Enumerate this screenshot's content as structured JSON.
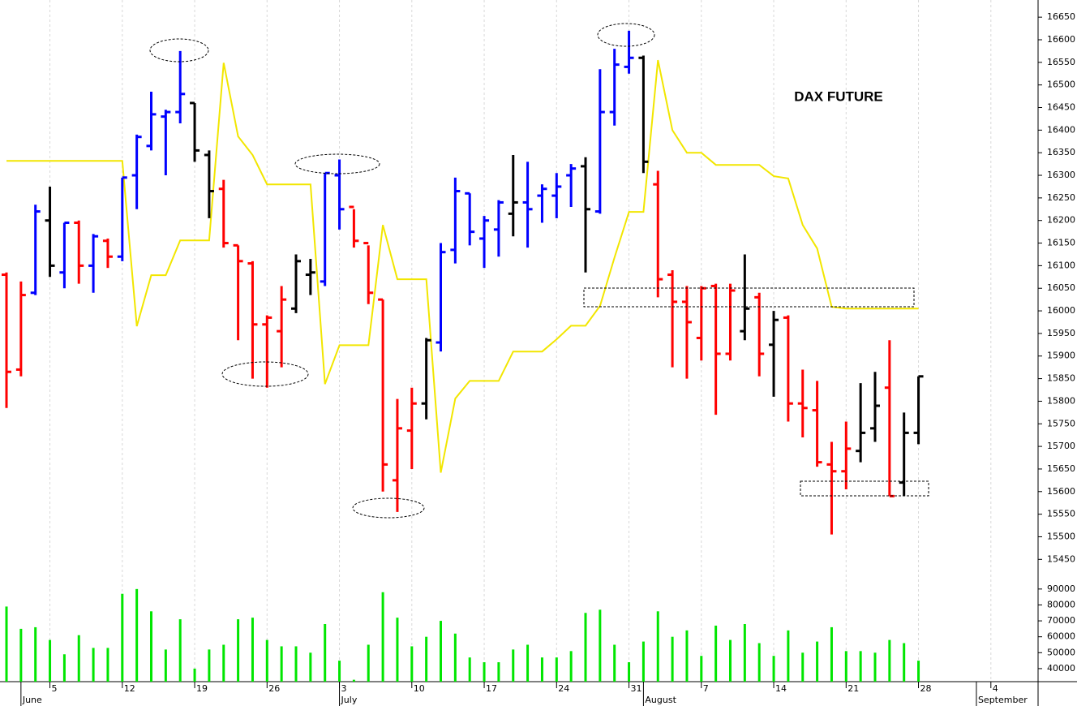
{
  "chart_data": {
    "type": "ohlc",
    "title": "DAX FUTURE",
    "categories": [
      null,
      null,
      null,
      "5",
      null,
      null,
      null,
      null,
      "12",
      null,
      null,
      null,
      null,
      "19",
      null,
      null,
      null,
      null,
      "26",
      null,
      null,
      null,
      null,
      "3",
      null,
      null,
      null,
      null,
      "10",
      null,
      null,
      null,
      null,
      "17",
      null,
      null,
      null,
      null,
      "24",
      null,
      null,
      null,
      null,
      "31",
      null,
      null,
      null,
      null,
      "7",
      null,
      null,
      null,
      null,
      "14",
      null,
      null,
      null,
      null,
      "21",
      null,
      null,
      null,
      null,
      "28",
      null,
      null,
      null,
      null,
      "4"
    ],
    "month_ticks": [
      {
        "value": 1,
        "label": "June"
      },
      {
        "value": 23,
        "label": "July"
      },
      {
        "value": 44,
        "label": "August"
      },
      {
        "value": 67,
        "label": "September"
      }
    ],
    "ohlc": {
      "open": [
        16080,
        15870,
        16040,
        16200,
        16085,
        16195,
        16100,
        16155,
        16120,
        16300,
        16365,
        16430,
        16440,
        16460,
        16345,
        16270,
        16145,
        16105,
        15970,
        15955,
        16005,
        16080,
        16065,
        16300,
        16230,
        16150,
        16025,
        15625,
        15735,
        15795,
        15930,
        16135,
        16260,
        16160,
        16180,
        16215,
        16240,
        16255,
        16255,
        16300,
        16320,
        16220,
        16440,
        16540,
        16560,
        16280,
        16080,
        16020,
        15940,
        16055,
        15905,
        15955,
        16030,
        15925,
        15985,
        15795,
        15780,
        15660,
        15645,
        15690,
        15740,
        15830,
        15620,
        15730,
        null,
        null,
        null,
        null,
        null
      ],
      "high": [
        16085,
        16065,
        16235,
        16275,
        16195,
        16200,
        16170,
        16160,
        16295,
        16390,
        16485,
        16445,
        16575,
        16460,
        16355,
        16290,
        16145,
        16110,
        15990,
        16055,
        16125,
        16115,
        16305,
        16335,
        16225,
        16145,
        16025,
        15805,
        15830,
        15940,
        16150,
        16295,
        16260,
        16210,
        16245,
        16345,
        16330,
        16280,
        16305,
        16325,
        16340,
        16535,
        16580,
        16620,
        16565,
        16310,
        16090,
        16055,
        16055,
        16060,
        16060,
        16125,
        16040,
        16000,
        15990,
        15870,
        15845,
        15710,
        15755,
        15840,
        15865,
        15935,
        15775,
        15855,
        null,
        null,
        null,
        null,
        null
      ],
      "low": [
        15785,
        15855,
        16035,
        16075,
        16050,
        16060,
        16040,
        16095,
        16110,
        16225,
        16355,
        16300,
        16415,
        16330,
        16205,
        16140,
        15935,
        15850,
        15830,
        15875,
        15995,
        16035,
        16055,
        16180,
        16140,
        16015,
        15600,
        15555,
        15650,
        15760,
        15910,
        16105,
        16145,
        16095,
        16120,
        16165,
        16140,
        16195,
        16205,
        16230,
        16085,
        16215,
        16410,
        16525,
        16305,
        16030,
        15875,
        15850,
        15890,
        15770,
        15890,
        15935,
        15855,
        15810,
        15755,
        15720,
        15655,
        15505,
        15605,
        15665,
        15710,
        15590,
        15590,
        15705,
        null,
        null,
        null,
        null,
        null
      ],
      "close": [
        15865,
        16035,
        16220,
        16100,
        16195,
        16100,
        16165,
        16120,
        16295,
        16385,
        16435,
        16440,
        16480,
        16355,
        16265,
        16150,
        16110,
        15970,
        15985,
        16025,
        16110,
        16085,
        16305,
        16225,
        16155,
        16040,
        15660,
        15740,
        15795,
        15935,
        16130,
        16265,
        16175,
        16200,
        16240,
        16240,
        16225,
        16270,
        16275,
        16315,
        16225,
        16440,
        16545,
        16560,
        16330,
        16070,
        16020,
        15975,
        16050,
        15905,
        16045,
        16005,
        15905,
        15980,
        15795,
        15785,
        15665,
        15645,
        15695,
        15730,
        15790,
        15590,
        15730,
        15855,
        null,
        null,
        null,
        null,
        null
      ],
      "colors": [
        "#ff0000",
        "#ff0000",
        "#0000ff",
        "#000000",
        "#0000ff",
        "#ff0000",
        "#0000ff",
        "#ff0000",
        "#0000ff",
        "#0000ff",
        "#0000ff",
        "#0000ff",
        "#0000ff",
        "#000000",
        "#000000",
        "#ff0000",
        "#ff0000",
        "#ff0000",
        "#ff0000",
        "#ff0000",
        "#000000",
        "#000000",
        "#0000ff",
        "#0000ff",
        "#ff0000",
        "#ff0000",
        "#ff0000",
        "#ff0000",
        "#ff0000",
        "#000000",
        "#0000ff",
        "#0000ff",
        "#0000ff",
        "#0000ff",
        "#0000ff",
        "#000000",
        "#0000ff",
        "#0000ff",
        "#0000ff",
        "#0000ff",
        "#000000",
        "#0000ff",
        "#0000ff",
        "#0000ff",
        "#000000",
        "#ff0000",
        "#ff0000",
        "#ff0000",
        "#ff0000",
        "#ff0000",
        "#ff0000",
        "#000000",
        "#ff0000",
        "#000000",
        "#ff0000",
        "#ff0000",
        "#ff0000",
        "#ff0000",
        "#ff0000",
        "#000000",
        "#000000",
        "#ff0000",
        "#000000",
        "#000000",
        null,
        null,
        null,
        null,
        null
      ]
    },
    "line": {
      "color": "#f2e600",
      "values": [
        16332,
        16332,
        16332,
        16332,
        16332,
        16332,
        16332,
        16332,
        16332,
        15966,
        16079,
        16079,
        16156,
        16156,
        16156,
        16549,
        16386,
        16345,
        16280,
        16280,
        16280,
        16280,
        15838,
        15924,
        15924,
        15924,
        16190,
        16070,
        16070,
        16070,
        15642,
        15806,
        15845,
        15845,
        15845,
        15910,
        15910,
        15910,
        15937,
        15967,
        15967,
        16011,
        16118,
        16219,
        16219,
        16555,
        16400,
        16350,
        16350,
        16323,
        16323,
        16323,
        16323,
        16298,
        16293,
        16190,
        16138,
        16009,
        16005,
        16005,
        16005,
        16005,
        16005,
        16005,
        null,
        null,
        null,
        null,
        null
      ]
    },
    "volume": {
      "color": "#00e600",
      "values": [
        79000,
        65000,
        66000,
        58000,
        49000,
        61000,
        53000,
        53000,
        87000,
        90000,
        76000,
        52000,
        71000,
        40000,
        52000,
        55000,
        71000,
        72000,
        58000,
        54000,
        54000,
        50000,
        68000,
        45000,
        33000,
        55000,
        88000,
        72000,
        54000,
        60000,
        70000,
        62000,
        47000,
        44000,
        44000,
        52000,
        55000,
        47000,
        47000,
        51000,
        75000,
        77000,
        55000,
        44000,
        57000,
        76000,
        60000,
        64000,
        48000,
        67000,
        58000,
        68000,
        56000,
        48000,
        64000,
        50000,
        57000,
        66000,
        51000,
        51000,
        50000,
        58000,
        56000,
        45000,
        null,
        null,
        null,
        null,
        null
      ],
      "ylim": [
        31800,
        94000
      ],
      "yticks": [
        40000,
        50000,
        60000,
        70000,
        80000,
        90000
      ]
    },
    "ylim": [
      15420,
      16688
    ],
    "yticks": [
      15450,
      15500,
      15550,
      15600,
      15650,
      15700,
      15750,
      15800,
      15850,
      15900,
      15950,
      16000,
      16050,
      16100,
      16150,
      16200,
      16250,
      16300,
      16350,
      16400,
      16450,
      16500,
      16550,
      16600,
      16650
    ],
    "grid": true
  }
}
